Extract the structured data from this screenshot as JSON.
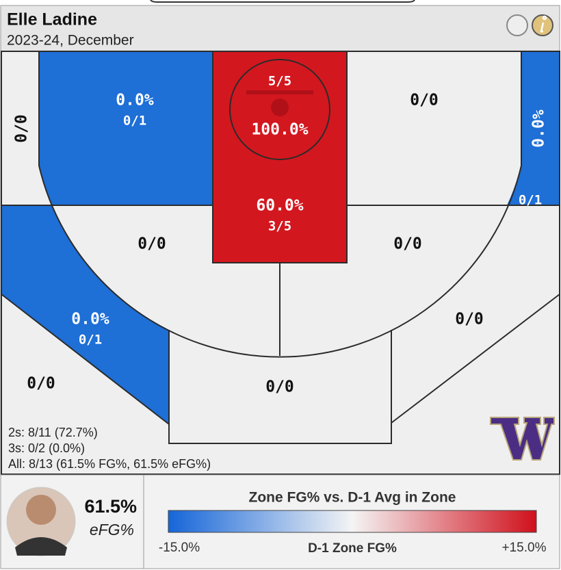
{
  "header": {
    "title": "Elle Ladine",
    "subtitle": "2023-24, December"
  },
  "zones": [
    {
      "ratio": "0/0"
    },
    {
      "pct": "0.0%",
      "ratio": "0/1"
    },
    {
      "pct": "100.0%",
      "ratio": "5/5"
    },
    {
      "pct": "60.0%",
      "ratio": "3/5"
    },
    {
      "ratio": "0/0"
    },
    {
      "pct": "0.0%",
      "ratio": "0/1"
    },
    {
      "ratio": "0/0"
    },
    {
      "ratio": "0/0"
    },
    {
      "pct": "0.0%",
      "ratio": "0/1"
    },
    {
      "ratio": "0/0"
    },
    {
      "ratio": "0/0"
    },
    {
      "ratio": "0/0"
    }
  ],
  "stats": [
    "2s: 8/11 (72.7%)",
    "3s: 0/2 (0.0%)",
    "All: 8/13 (61.5% FG%, 61.5% eFG%)"
  ],
  "player": {
    "efg": "61.5%",
    "efg_label": "eFG%"
  },
  "legend": {
    "title": "Zone FG% vs. D-1 Avg in Zone",
    "min_label": "-15.0%",
    "axis_label": "D-1 Zone FG%",
    "max_label": "+15.0%"
  }
}
